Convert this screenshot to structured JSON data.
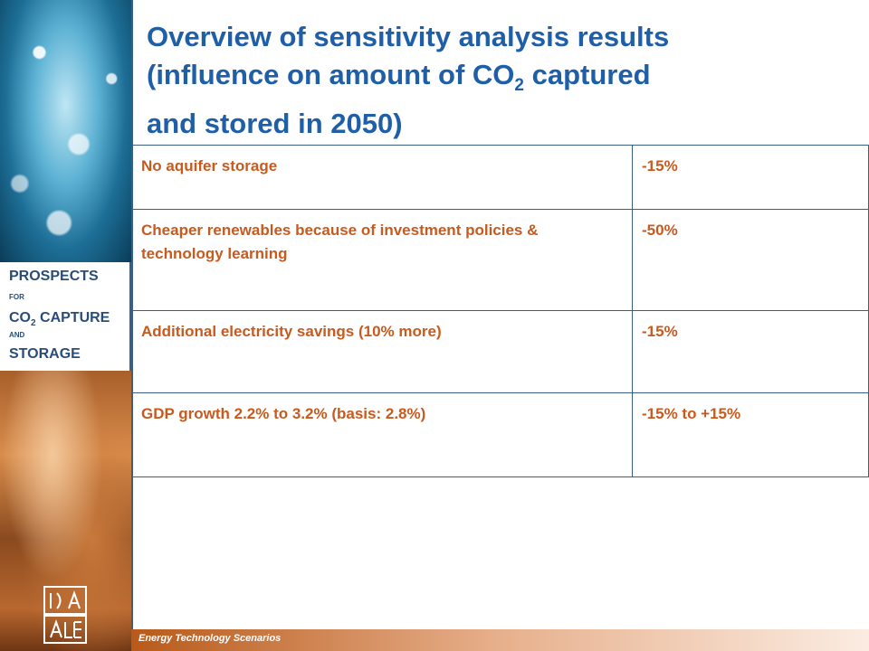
{
  "title": {
    "line1": "Overview of sensitivity analysis results",
    "line2_pre": "(influence on amount of CO",
    "line2_sub": "2",
    "line2_post": " captured",
    "line3": "and stored in 2050)"
  },
  "sidebar": {
    "prospects": "PROSPECTS",
    "for": "FOR",
    "co": "CO",
    "co_sub": "2",
    "capture": " CAPTURE",
    "and": "AND",
    "storage": "STORAGE"
  },
  "table": {
    "rows": [
      {
        "factor": "No aquifer storage",
        "impact": "-15%"
      },
      {
        "factor": "Cheaper renewables because of investment policies & technology learning",
        "impact": "-50%"
      },
      {
        "factor": "Additional  electricity savings (10% more)",
        "impact": "-15%"
      },
      {
        "factor": "GDP growth 2.2% to 3.2% (basis: 2.8%)",
        "impact": "-15% to +15%"
      }
    ]
  },
  "footer": {
    "text": "Energy Technology Scenarios"
  },
  "colors": {
    "title": "#1f5fa8",
    "table_text": "#c85a1e",
    "border": "#3a5f86",
    "brand": "#2a4d78"
  },
  "logo": {
    "icon": "iea-logo"
  }
}
